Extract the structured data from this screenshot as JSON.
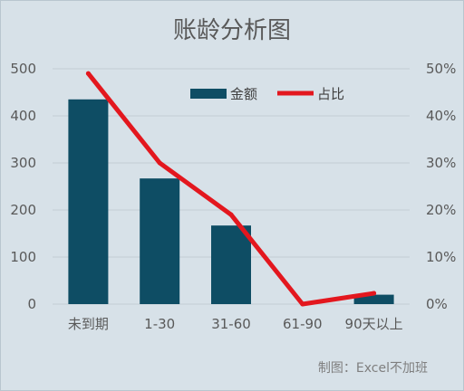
{
  "chart_data": {
    "type": "bar+line",
    "title": "账龄分析图",
    "categories": [
      "未到期",
      "1-30",
      "31-60",
      "61-90",
      "90天以上"
    ],
    "series": [
      {
        "name": "金额",
        "type": "bar",
        "axis": "left",
        "color": "#0e4d64",
        "values": [
          435,
          267,
          167,
          0,
          20
        ]
      },
      {
        "name": "占比",
        "type": "line",
        "axis": "right",
        "color": "#e3171e",
        "values": [
          0.49,
          0.3,
          0.19,
          0.0,
          0.023
        ]
      }
    ],
    "y_left": {
      "min": 0,
      "max": 500,
      "ticks": [
        "0",
        "100",
        "200",
        "300",
        "400",
        "500"
      ]
    },
    "y_right": {
      "min": 0,
      "max": 0.5,
      "ticks": [
        "0%",
        "10%",
        "20%",
        "30%",
        "40%",
        "50%"
      ]
    },
    "grid": true,
    "legend": "top-right"
  },
  "credit": "制图：Excel不加班",
  "colors": {
    "background": "#d7e1e8",
    "gridline": "#c3cdd4",
    "bar": "#0e4d64",
    "line": "#e3171e"
  }
}
